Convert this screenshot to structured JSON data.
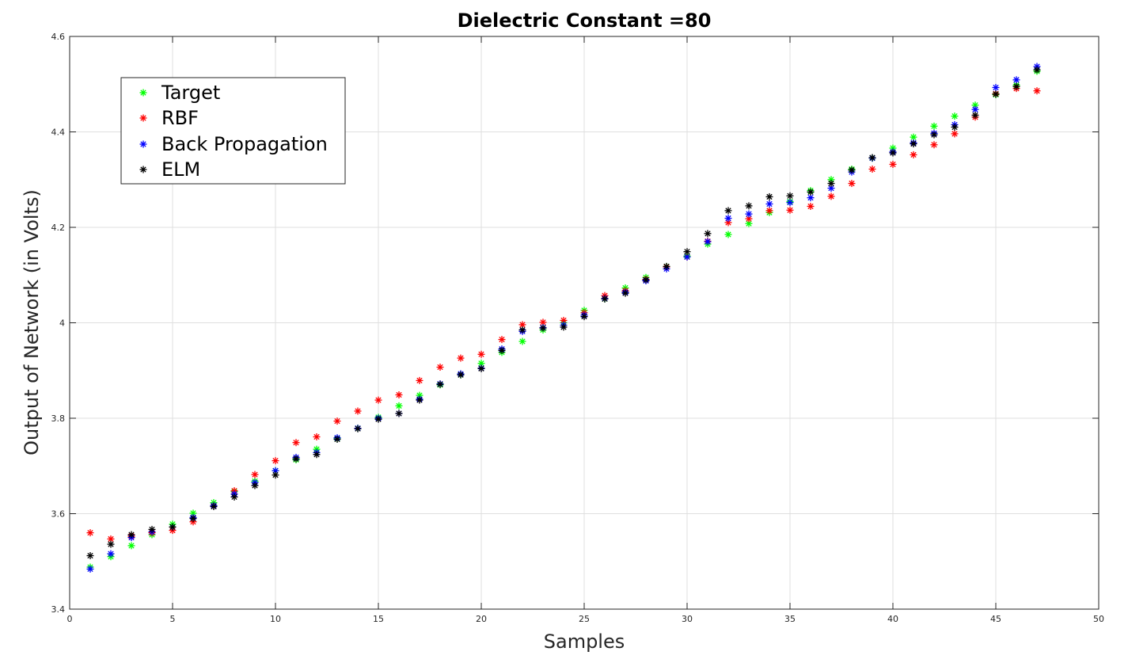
{
  "chart_data": {
    "type": "scatter",
    "title": "Dielectric Constant =80",
    "xlabel": "Samples",
    "ylabel": "Output of Network (in Volts)",
    "xlim": [
      0,
      50
    ],
    "ylim": [
      3.4,
      4.6
    ],
    "xticks": [
      0,
      5,
      10,
      15,
      20,
      25,
      30,
      35,
      40,
      45,
      50
    ],
    "yticks": [
      3.4,
      3.6,
      3.8,
      4.0,
      4.2,
      4.4,
      4.6
    ],
    "xtick_labels": [
      "0",
      "5",
      "10",
      "15",
      "20",
      "25",
      "30",
      "35",
      "40",
      "45",
      "50"
    ],
    "ytick_labels": [
      "3.4",
      "3.6",
      "3.8",
      "4",
      "4.2",
      "4.4",
      "4.6"
    ],
    "grid": true,
    "legend_position": "top-left",
    "marker": "*",
    "x": [
      1,
      2,
      3,
      4,
      5,
      6,
      7,
      8,
      9,
      10,
      11,
      12,
      13,
      14,
      15,
      16,
      17,
      18,
      19,
      20,
      21,
      22,
      23,
      24,
      25,
      26,
      27,
      28,
      29,
      30,
      31,
      32,
      33,
      34,
      35,
      36,
      37,
      38,
      39,
      40,
      41,
      42,
      43,
      44,
      45,
      46,
      47
    ],
    "series": [
      {
        "name": "Target",
        "color": "#00ff00",
        "values": [
          3.488,
          3.51,
          3.533,
          3.556,
          3.578,
          3.601,
          3.623,
          3.646,
          3.668,
          3.69,
          3.713,
          3.735,
          3.757,
          3.779,
          3.802,
          3.826,
          3.848,
          3.87,
          3.891,
          3.915,
          3.938,
          3.961,
          3.985,
          4.0,
          4.026,
          4.05,
          4.073,
          4.095,
          4.118,
          4.14,
          4.165,
          4.185,
          4.208,
          4.231,
          4.254,
          4.277,
          4.3,
          4.322,
          4.345,
          4.366,
          4.389,
          4.412,
          4.433,
          4.456,
          4.478,
          4.498,
          4.527
        ]
      },
      {
        "name": "RBF",
        "color": "#ff0000",
        "values": [
          3.56,
          3.547,
          3.553,
          3.56,
          3.565,
          3.583,
          3.617,
          3.648,
          3.682,
          3.711,
          3.749,
          3.761,
          3.794,
          3.815,
          3.838,
          3.849,
          3.879,
          3.907,
          3.926,
          3.934,
          3.965,
          3.996,
          4.001,
          4.005,
          4.021,
          4.057,
          4.067,
          4.091,
          4.117,
          4.138,
          4.171,
          4.21,
          4.218,
          4.235,
          4.236,
          4.244,
          4.265,
          4.292,
          4.322,
          4.332,
          4.352,
          4.373,
          4.396,
          4.431,
          4.48,
          4.491,
          4.486
        ]
      },
      {
        "name": "Back Propagation",
        "color": "#0000ff",
        "values": [
          3.484,
          3.516,
          3.55,
          3.562,
          3.572,
          3.592,
          3.617,
          3.641,
          3.665,
          3.69,
          3.718,
          3.728,
          3.759,
          3.779,
          3.8,
          3.81,
          3.84,
          3.872,
          3.893,
          3.905,
          3.945,
          3.982,
          3.99,
          3.995,
          4.016,
          4.051,
          4.064,
          4.088,
          4.113,
          4.138,
          4.17,
          4.219,
          4.228,
          4.249,
          4.252,
          4.262,
          4.282,
          4.316,
          4.345,
          4.358,
          4.377,
          4.397,
          4.415,
          4.447,
          4.493,
          4.509,
          4.537
        ]
      },
      {
        "name": "ELM",
        "color": "#000000",
        "values": [
          3.512,
          3.536,
          3.556,
          3.567,
          3.572,
          3.59,
          3.615,
          3.635,
          3.659,
          3.681,
          3.715,
          3.724,
          3.756,
          3.778,
          3.798,
          3.81,
          3.838,
          3.871,
          3.891,
          3.904,
          3.942,
          3.985,
          3.989,
          3.991,
          4.013,
          4.05,
          4.062,
          4.09,
          4.118,
          4.149,
          4.187,
          4.235,
          4.245,
          4.264,
          4.266,
          4.274,
          4.292,
          4.32,
          4.346,
          4.356,
          4.375,
          4.394,
          4.41,
          4.435,
          4.479,
          4.495,
          4.53
        ]
      }
    ]
  }
}
